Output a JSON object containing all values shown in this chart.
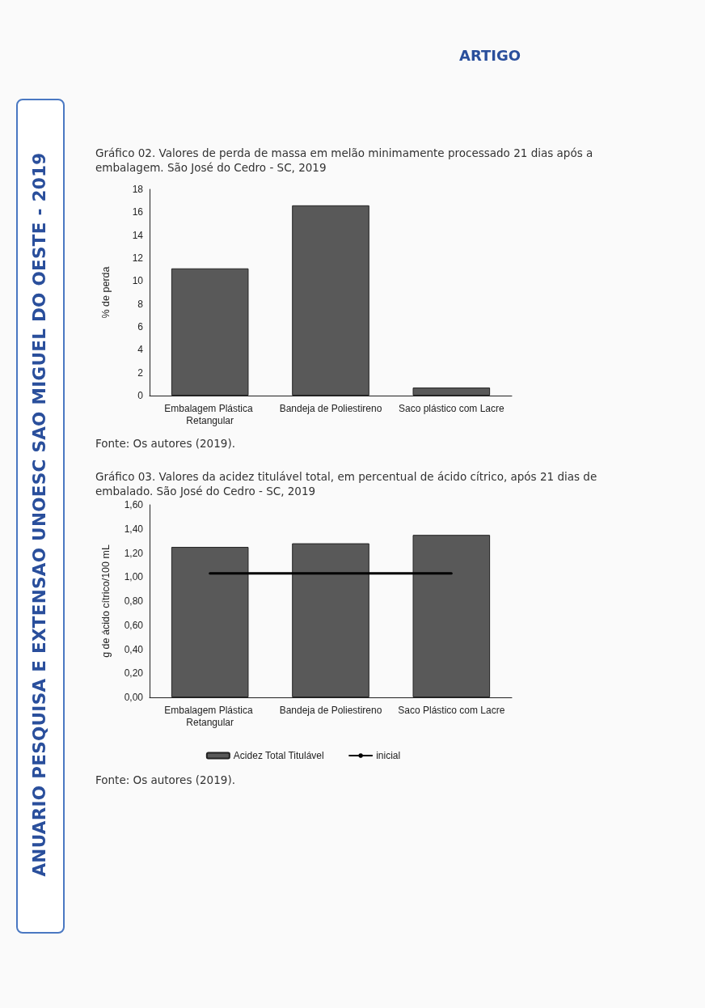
{
  "chart_data": [
    {
      "type": "bar",
      "title": "Gráfico 02. Valores de perda de massa em melão minimamente processado 21 dias após a embalagem. São José do Cedro - SC, 2019",
      "ylabel": "% de perda",
      "categories": [
        "Embalagem Plástica Retangular",
        "Bandeja de Poliestireno",
        "Saco plástico com Lacre"
      ],
      "values": [
        11.1,
        16.6,
        0.7
      ],
      "color": "#595959",
      "ylim": [
        0,
        18
      ],
      "yticks": [
        0,
        2,
        4,
        6,
        8,
        10,
        12,
        14,
        16,
        18
      ],
      "grid": false,
      "annotations": [
        "ARTIGO",
        "ANUARIO PESQUISA E EXTENSAO UNOESC SAO MIGUEL DO OESTE - 2019",
        "Fonte: Os autores (2019)."
      ]
    },
    {
      "type": "bar",
      "title": "Gráfico 03. Valores da acidez titulável total, em percentual de ácido cítrico, após 21 dias de embalado. São José do Cedro - SC, 2019",
      "ylabel": "g de ácido cítrico/100 mL",
      "categories": [
        "Embalagem Plástica Retangular",
        "Bandeja de Poliestireno",
        "Saco Plástico com Lacre"
      ],
      "series": [
        {
          "name": "Acidez Total Titulável",
          "color": "#595959",
          "values": [
            1.25,
            1.28,
            1.35
          ]
        },
        {
          "name": "inicial",
          "type": "line",
          "color": "#000000",
          "values": [
            1.03,
            1.03,
            1.03
          ]
        }
      ],
      "marker": "none",
      "line_style": "solid",
      "ylim": [
        0,
        1.6
      ],
      "yticks": [
        {
          "value": 0,
          "label": "0,00"
        },
        {
          "value": 0.2,
          "label": "0,20"
        },
        {
          "value": 0.4,
          "label": "0,40"
        },
        {
          "value": 0.6,
          "label": "0,60"
        },
        {
          "value": 0.8,
          "label": "0,80"
        },
        {
          "value": 1,
          "label": "1,00"
        },
        {
          "value": 1.2,
          "label": "1,20"
        },
        {
          "value": 1.4,
          "label": "1,40"
        },
        {
          "value": 1.6,
          "label": "1,60"
        }
      ],
      "grid": false,
      "legend": "bottom",
      "annotations": [
        "Fonte: Os autores (2019)."
      ]
    }
  ]
}
